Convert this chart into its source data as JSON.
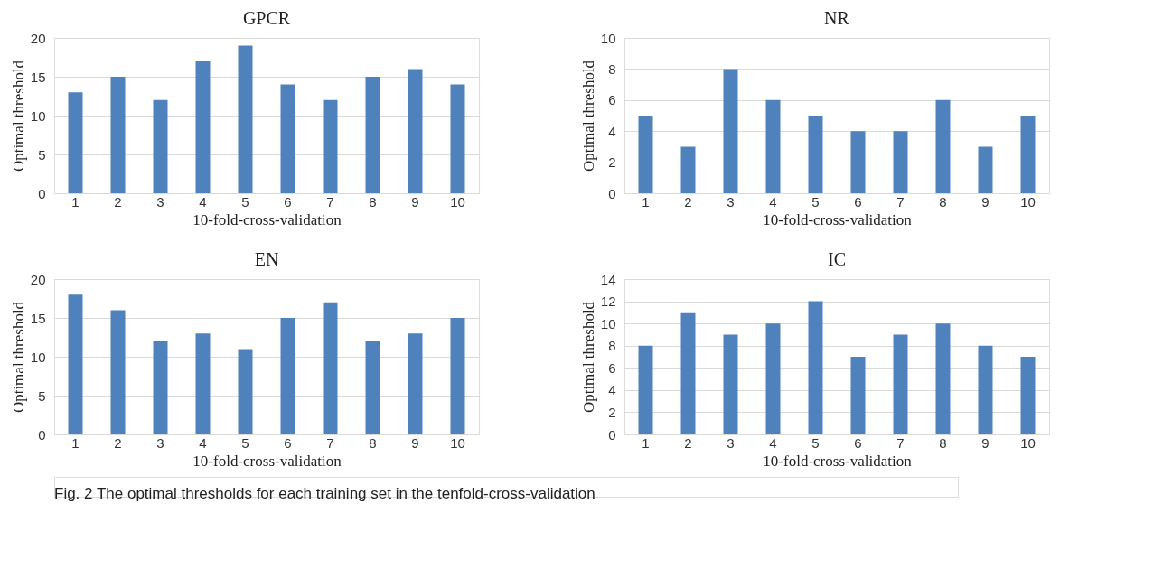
{
  "chart_data": [
    {
      "type": "bar",
      "title": "GPCR",
      "xlabel": "10-fold-cross-validation",
      "ylabel": "Optimal threshold",
      "categories": [
        "1",
        "2",
        "3",
        "4",
        "5",
        "6",
        "7",
        "8",
        "9",
        "10"
      ],
      "values": [
        13,
        15,
        12,
        17,
        19,
        14,
        12,
        15,
        16,
        14
      ],
      "color": "#4f81bd",
      "ylim": [
        0,
        20
      ],
      "yticks": [
        0,
        5,
        10,
        15,
        20
      ],
      "grid": "y"
    },
    {
      "type": "bar",
      "title": "NR",
      "xlabel": "10-fold-cross-validation",
      "ylabel": "Optimal threshold",
      "categories": [
        "1",
        "2",
        "3",
        "4",
        "5",
        "6",
        "7",
        "8",
        "9",
        "10"
      ],
      "values": [
        5,
        3,
        8,
        6,
        5,
        4,
        4,
        6,
        3,
        5
      ],
      "color": "#4f81bd",
      "ylim": [
        0,
        10
      ],
      "yticks": [
        0,
        2,
        4,
        6,
        8,
        10
      ],
      "grid": "y"
    },
    {
      "type": "bar",
      "title": "EN",
      "xlabel": "10-fold-cross-validation",
      "ylabel": "Optimal threshold",
      "categories": [
        "1",
        "2",
        "3",
        "4",
        "5",
        "6",
        "7",
        "8",
        "9",
        "10"
      ],
      "values": [
        18,
        16,
        12,
        13,
        11,
        15,
        17,
        12,
        13,
        15
      ],
      "color": "#4f81bd",
      "ylim": [
        0,
        20
      ],
      "yticks": [
        0,
        5,
        10,
        15,
        20
      ],
      "grid": "y"
    },
    {
      "type": "bar",
      "title": "IC",
      "xlabel": "10-fold-cross-validation",
      "ylabel": "Optimal threshold",
      "categories": [
        "1",
        "2",
        "3",
        "4",
        "5",
        "6",
        "7",
        "8",
        "9",
        "10"
      ],
      "values": [
        8,
        11,
        9,
        10,
        12,
        7,
        9,
        10,
        8,
        7
      ],
      "color": "#4f81bd",
      "ylim": [
        0,
        14
      ],
      "yticks": [
        0,
        2,
        4,
        6,
        8,
        10,
        12,
        14
      ],
      "grid": "y",
      "annotations": [
        "Fig. 2  The optimal thresholds for each training set in the tenfold-cross-validation"
      ]
    }
  ]
}
